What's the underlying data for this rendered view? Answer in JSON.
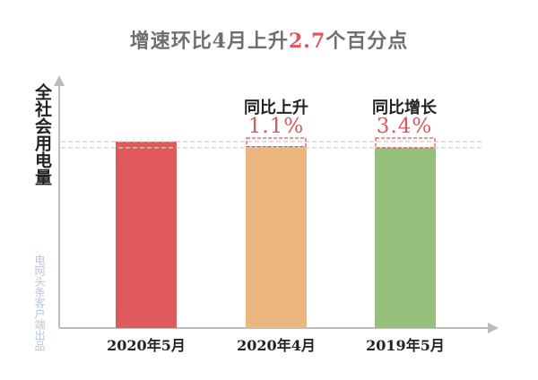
{
  "title": {
    "prefix": "增速环比4月上升",
    "highlight": "2.7",
    "suffix": "个百分点"
  },
  "colors": {
    "bar_2020_05": "#e05a5b",
    "bar_2020_04": "#ecb77f",
    "bar_2019_05": "#95c07b",
    "highlight": "#e0545a",
    "axis": "#bdbdbd"
  },
  "watermark": "电网头条客户端出品",
  "annotations": [
    {
      "label": "同比上升",
      "value": "1.1%"
    },
    {
      "label": "同比增长",
      "value": "3.4%"
    }
  ],
  "chart_data": {
    "type": "bar",
    "title": "增速环比4月上升2.7个百分点",
    "ylabel": "全社会用电量",
    "xlabel": "",
    "categories": [
      "2020年5月",
      "2020年4月",
      "2019年5月"
    ],
    "values": [
      100,
      97.3,
      96.7
    ],
    "ylim": [
      0,
      100
    ],
    "grid": false,
    "note": "Relative heights only; no numeric axis scale is printed."
  }
}
